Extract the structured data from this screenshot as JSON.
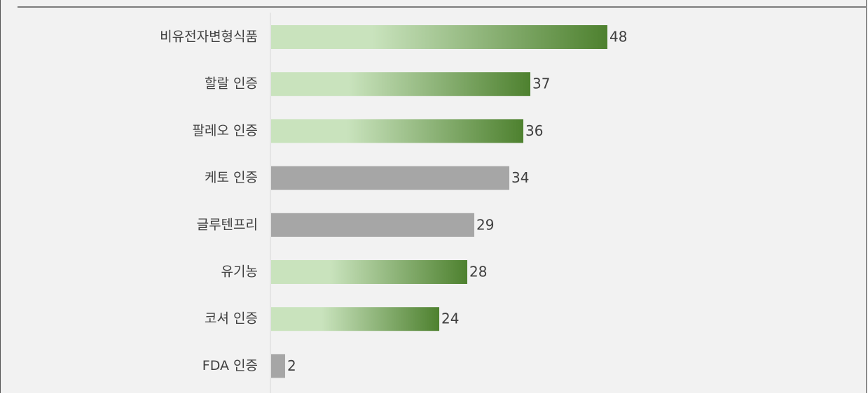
{
  "chart_data": {
    "type": "bar",
    "orientation": "horizontal",
    "title": "",
    "xlabel": "",
    "ylabel": "",
    "categories": [
      "비유전자변형식품",
      "할랄 인증",
      "팔레오 인증",
      "케토 인증",
      "글루텐프리",
      "유기농",
      "코셔 인증",
      "FDA 인증"
    ],
    "values": [
      48,
      37,
      36,
      34,
      29,
      28,
      24,
      2
    ],
    "highlighted": [
      true,
      true,
      true,
      false,
      false,
      true,
      true,
      false
    ],
    "xlim": [
      0,
      48
    ],
    "grid": false,
    "legend": "none",
    "colors": {
      "highlight_start": "#c9e3bd",
      "highlight_end": "#4e812f",
      "muted": "#a6a6a6",
      "background": "#f2f2f2"
    }
  }
}
